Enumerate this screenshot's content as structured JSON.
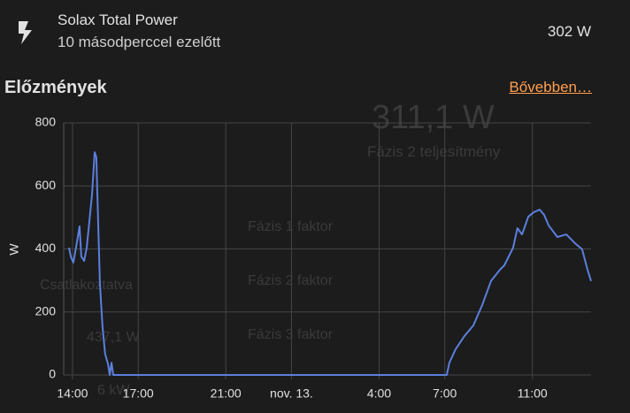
{
  "header": {
    "title": "Solax Total Power",
    "subtitle": "10 másodperccel ezelőtt",
    "state": "302 W"
  },
  "history": {
    "title": "Előzmények",
    "link": "Bővebben…"
  },
  "background": {
    "value": "311,1 W",
    "label": "Fázis 2 teljesítmény",
    "rows": [
      "Fázis 1 faktor",
      "Fázis 2 faktor",
      "Fázis 3 faktor"
    ],
    "status": "Csatlakoztatva",
    "power": "437,1 W",
    "unit": "6 kW"
  },
  "chart_data": {
    "type": "line",
    "y_label": "W",
    "x": [
      13.84,
      13.92,
      14.04,
      14.16,
      14.32,
      14.4,
      14.53,
      14.65,
      14.77,
      14.89,
      15.01,
      15.09,
      15.17,
      15.25,
      15.37,
      15.49,
      15.62,
      15.7,
      15.78,
      15.86,
      31.09,
      31.21,
      31.49,
      31.9,
      32.3,
      32.71,
      33.11,
      33.52,
      33.72,
      34.12,
      34.32,
      34.53,
      34.81,
      35.05,
      35.33,
      35.54,
      35.74,
      36.14,
      36.55,
      36.95,
      37.27,
      37.52,
      37.68
    ],
    "series": [
      {
        "name": "Solax Total Power",
        "color": "#5b7fde",
        "values": [
          404,
          376,
          357,
          404,
          472,
          376,
          362,
          404,
          488,
          573,
          707,
          690,
          488,
          292,
          152,
          67,
          34,
          0,
          39,
          0,
          0,
          39,
          81,
          124,
          157,
          222,
          298,
          334,
          348,
          404,
          466,
          446,
          502,
          516,
          525,
          508,
          475,
          438,
          446,
          418,
          399,
          334,
          298
        ]
      }
    ],
    "xlim": [
      13.84,
      37.68
    ],
    "xticks": [
      {
        "value": 14,
        "label": "14:00"
      },
      {
        "value": 17,
        "label": "17:00"
      },
      {
        "value": 21,
        "label": "21:00"
      },
      {
        "value": 24,
        "label": "nov. 13."
      },
      {
        "value": 28,
        "label": "4:00"
      },
      {
        "value": 31,
        "label": "7:00"
      },
      {
        "value": 35,
        "label": "11:00"
      }
    ],
    "ylim": [
      0,
      800
    ],
    "yticks": [
      0,
      200,
      400,
      600,
      800
    ],
    "grid": true
  }
}
